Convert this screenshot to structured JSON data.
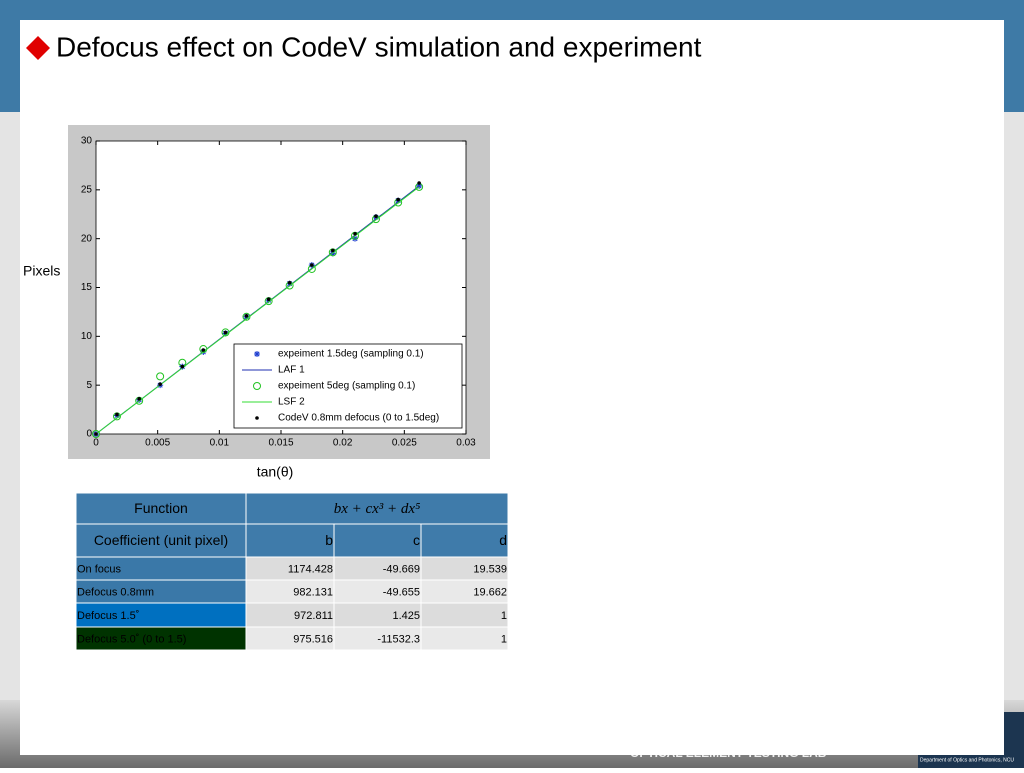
{
  "title": "Defocus effect  on CodeV simulation and experiment",
  "chart_data": {
    "type": "scatter",
    "ylabel": "Pixels",
    "xlabel": "tan(θ)",
    "xlim": [
      0,
      0.03
    ],
    "xticks": [
      0,
      0.005,
      0.01,
      0.015,
      0.02,
      0.025,
      0.03
    ],
    "ylim": [
      0,
      30
    ],
    "yticks": [
      0,
      5,
      10,
      15,
      20,
      25,
      30
    ],
    "legend": "lower right",
    "series": [
      {
        "name": "expeiment 1.5deg (sampling 0.1)",
        "color": "#1f3fd0",
        "style": "star",
        "x": [
          0,
          0.0017,
          0.0035,
          0.0052,
          0.007,
          0.0087,
          0.0105,
          0.0122,
          0.014,
          0.0157,
          0.0175,
          0.0192,
          0.021,
          0.0227,
          0.0245,
          0.0262
        ],
        "values": [
          0,
          1.9,
          3.5,
          5,
          6.9,
          8.4,
          10.3,
          12,
          13.7,
          15.4,
          17.3,
          18.5,
          20,
          22.2,
          23.9,
          25.4
        ]
      },
      {
        "name": "LAF 1",
        "color": "#1f2fb0",
        "style": "line",
        "x": [
          0,
          0.0262
        ],
        "values": [
          0,
          25.4
        ]
      },
      {
        "name": "expeiment 5deg (sampling 0.1)",
        "color": "#22c322",
        "style": "circle",
        "x": [
          0,
          0.0017,
          0.0035,
          0.0052,
          0.007,
          0.0087,
          0.0105,
          0.0122,
          0.014,
          0.0157,
          0.0175,
          0.0192,
          0.021,
          0.0227,
          0.0245,
          0.0262
        ],
        "values": [
          0,
          1.8,
          3.4,
          5.9,
          7.3,
          8.7,
          10.4,
          12,
          13.6,
          15.2,
          16.9,
          18.6,
          20.3,
          22,
          23.7,
          25.3
        ]
      },
      {
        "name": "LSF 2",
        "color": "#33dd33",
        "style": "line",
        "x": [
          0,
          0.0262
        ],
        "values": [
          0,
          25.3
        ]
      },
      {
        "name": "CodeV 0.8mm defocus (0 to 1.5deg)",
        "color": "#000000",
        "style": "dot",
        "x": [
          0,
          0.0017,
          0.0035,
          0.0052,
          0.007,
          0.0087,
          0.0105,
          0.0122,
          0.014,
          0.0157,
          0.0175,
          0.0192,
          0.021,
          0.0227,
          0.0245,
          0.0262
        ],
        "values": [
          0,
          2,
          3.6,
          5.1,
          6.9,
          8.6,
          10.4,
          12.1,
          13.8,
          15.5,
          17.3,
          18.8,
          20.5,
          22.3,
          24,
          25.7
        ]
      }
    ]
  },
  "table": {
    "header": [
      [
        "Function",
        "bx   + cx³ + dx⁵"
      ],
      [
        "Coefficient (unit pixel)",
        "b",
        "c",
        "d"
      ]
    ],
    "rows": [
      [
        "On focus",
        1174.428,
        -49.669,
        19.539
      ],
      [
        "Defocus 0.8mm",
        982.131,
        -49.655,
        19.662
      ],
      [
        "Defocus  1.5˚",
        972.811,
        1.425,
        1
      ],
      [
        "Defocus  5.0˚  (0 to 1.5)",
        975.516,
        -11532.3,
        1
      ]
    ]
  },
  "footer": {
    "lab": "OPTICAL ELEMENT TESTING LAB",
    "dept": "Department of Optics and Photonics, NCU"
  }
}
